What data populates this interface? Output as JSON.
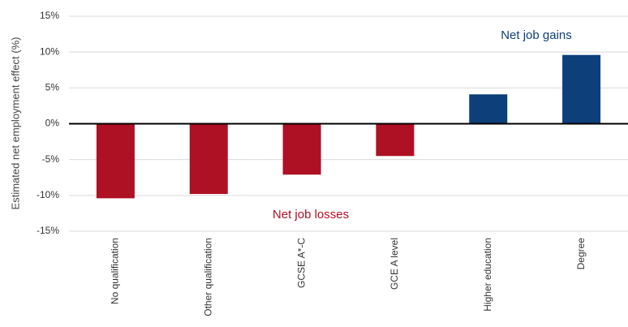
{
  "chart_data": {
    "type": "bar",
    "y_label": "Estimated net employment effect (%)",
    "categories": [
      "No qualification",
      "Other qualification",
      "GCSE A*-C",
      "GCE A level",
      "Higher education",
      "Degree"
    ],
    "values": [
      -10.4,
      -9.8,
      -7.1,
      -4.5,
      4.1,
      9.6
    ],
    "colors": [
      "#ae1024",
      "#ae1024",
      "#ae1024",
      "#ae1024",
      "#0d3f7a",
      "#0d3f7a"
    ],
    "ylim": [
      -15,
      15
    ],
    "yticks": [
      {
        "value": -15,
        "label": "-15%"
      },
      {
        "value": -10,
        "label": "-10%"
      },
      {
        "value": -5,
        "label": "-5%"
      },
      {
        "value": 0,
        "label": "0%"
      },
      {
        "value": 5,
        "label": "5%"
      },
      {
        "value": 10,
        "label": "10%"
      },
      {
        "value": 15,
        "label": "15%"
      }
    ],
    "grid": true,
    "annotations": [
      {
        "text": "Net job gains",
        "color": "#0d3f7a"
      },
      {
        "text": "Net job losses",
        "color": "#ae1024"
      }
    ]
  }
}
